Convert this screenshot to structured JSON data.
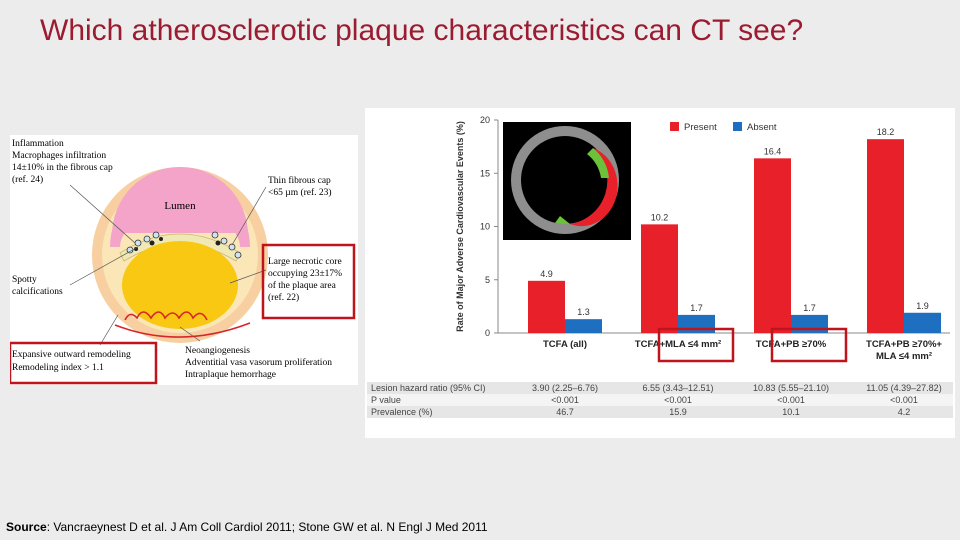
{
  "slide": {
    "title": "Which atherosclerotic plaque characteristics can CT see?",
    "source_label": "Source",
    "source_text": ": Vancraeynest D et al. J Am Coll Cardiol 2011; Stone GW et al. N Engl J Med 2011"
  },
  "diagram": {
    "lumen": "Lumen",
    "inflammation": [
      "Inflammation",
      "Macrophages infiltration",
      "14±10% in the fibrous cap",
      "(ref. 24)"
    ],
    "thin_cap": [
      "Thin fibrous cap",
      "<65 µm (ref. 23)"
    ],
    "necrotic_core": [
      "Large necrotic core",
      "occupying 23±17%",
      "of the plaque area",
      "(ref. 22)"
    ],
    "spotty": [
      "Spotty",
      "calcifications"
    ],
    "remodeling": [
      "Expansive outward remodeling",
      "Remodeling index > 1.1"
    ],
    "neo": [
      "Neoangiogenesis",
      "Adventitial vasa vasorum proliferation",
      "Intraplaque hemorrhage"
    ]
  },
  "chart_data": {
    "type": "bar",
    "ylabel": "Rate of Major Adverse Cardiovascular Events (%)",
    "ylim": [
      0,
      20
    ],
    "yticks": [
      "0",
      "5",
      "10",
      "15",
      "20"
    ],
    "categories": [
      "TCFA (all)",
      "TCFA+MLA ≤4 mm²",
      "TCFA+PB ≥70%",
      "TCFA+PB ≥70%+ MLA ≤4 mm²"
    ],
    "series": [
      {
        "name": "Present",
        "color": "#e8202a",
        "values": [
          4.9,
          10.2,
          16.4,
          18.2
        ],
        "labels": [
          "4.9",
          "10.2",
          "16.4",
          "18.2"
        ]
      },
      {
        "name": "Absent",
        "color": "#1f6fc0",
        "values": [
          1.3,
          1.7,
          1.7,
          1.9
        ],
        "labels": [
          "1.3",
          "1.7",
          "1.7",
          "1.9"
        ]
      }
    ],
    "legend_position": "top-right",
    "table": {
      "rows": [
        {
          "label": "Lesion hazard ratio (95% CI)",
          "values": [
            "3.90 (2.25–6.76)",
            "6.55 (3.43–12.51)",
            "10.83 (5.55–21.10)",
            "11.05 (4.39–27.82)"
          ]
        },
        {
          "label": "P value",
          "values": [
            "<0.001",
            "<0.001",
            "<0.001",
            "<0.001"
          ]
        },
        {
          "label": "Prevalence (%)",
          "values": [
            "46.7",
            "15.9",
            "10.1",
            "4.2"
          ]
        }
      ]
    }
  }
}
